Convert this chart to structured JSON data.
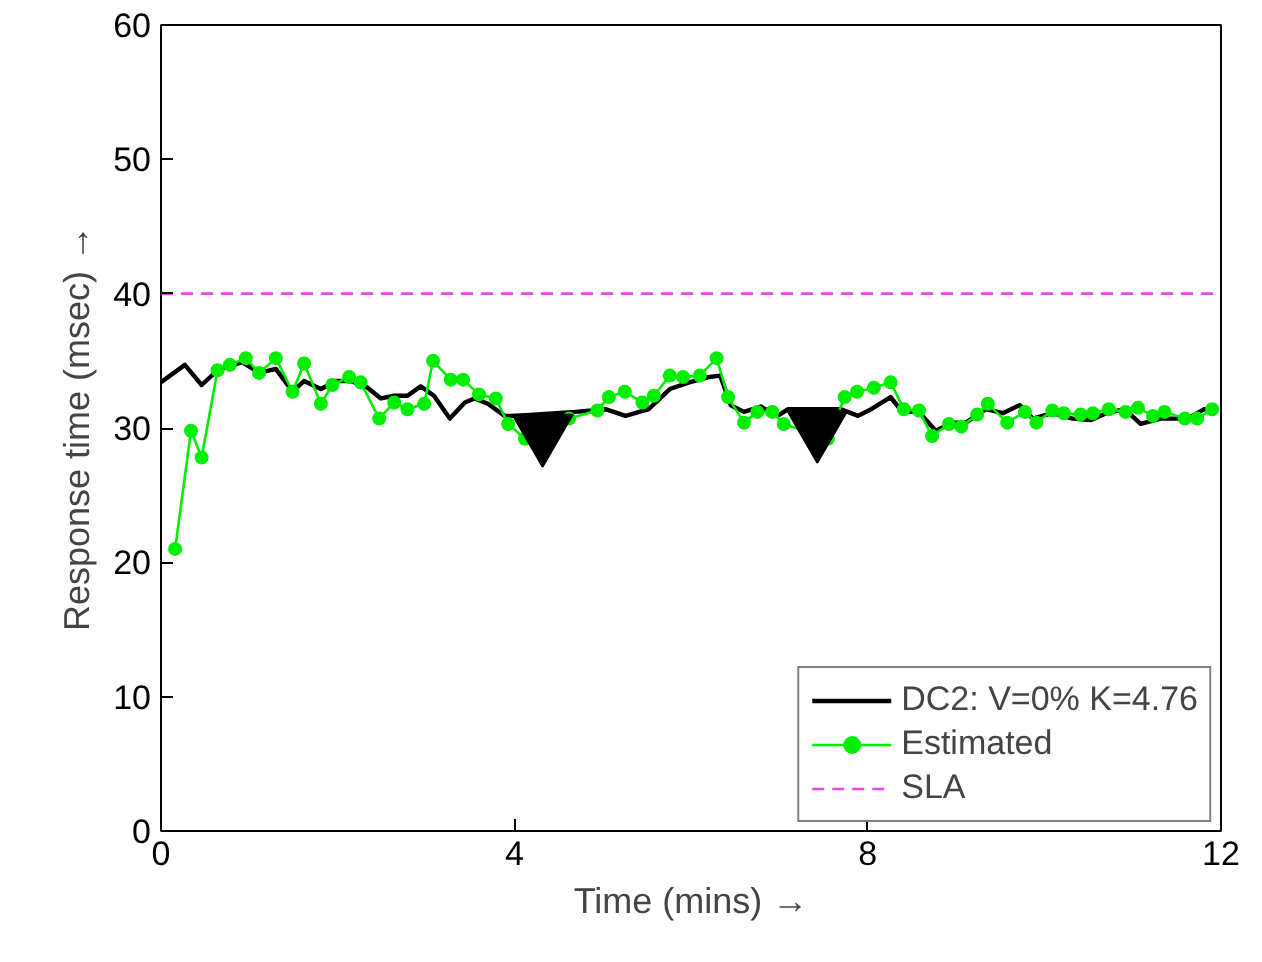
{
  "chart_data": {
    "type": "line",
    "xlabel": "Time (mins) →",
    "ylabel": "Response time (msec) →",
    "xlim": [
      0,
      12
    ],
    "ylim": [
      0,
      60
    ],
    "xticks": [
      0,
      4,
      8,
      12
    ],
    "yticks": [
      0,
      10,
      20,
      30,
      40,
      50,
      60
    ],
    "grid": false,
    "legend": "bottom right",
    "series": [
      {
        "name": "DC2: V=0% K=4.76",
        "color": "#000000",
        "marker": "none",
        "line_style": "solid",
        "x": [
          0,
          0.27,
          0.46,
          0.64,
          0.92,
          1.11,
          1.3,
          1.49,
          1.62,
          1.81,
          1.98,
          2.13,
          2.3,
          2.49,
          2.64,
          2.79,
          2.94,
          3.09,
          3.27,
          3.44,
          3.55,
          3.7,
          3.89,
          4.0,
          4.69,
          5.03,
          5.26,
          5.52,
          5.76,
          5.98,
          6.21,
          6.33,
          6.45,
          6.6,
          6.79,
          6.98,
          7.1,
          7.7,
          7.89,
          8.04,
          8.26,
          8.39,
          8.58,
          8.77,
          8.96,
          9.11,
          9.34,
          9.53,
          9.72,
          9.87,
          10.09,
          10.32,
          10.53,
          10.7,
          10.91,
          11.09,
          11.32,
          11.51,
          11.6,
          11.81,
          11.9
        ],
        "values": [
          33.4,
          34.7,
          33.2,
          34.3,
          34.9,
          34.1,
          34.4,
          32.7,
          33.5,
          32.9,
          33.5,
          33.5,
          33.2,
          32.2,
          32.4,
          32.4,
          33.1,
          32.4,
          30.7,
          31.9,
          32.2,
          31.8,
          30.9,
          30.9,
          31.2,
          31.4,
          30.9,
          31.4,
          32.9,
          33.4,
          33.8,
          33.9,
          31.7,
          31.2,
          31.6,
          30.9,
          31.4,
          31.4,
          30.9,
          31.4,
          32.3,
          31.2,
          31.2,
          29.8,
          30.4,
          30.4,
          31.4,
          31.1,
          31.7,
          30.7,
          31.1,
          30.7,
          30.6,
          31.1,
          31.4,
          30.3,
          30.7,
          30.7,
          30.6,
          31.4,
          31.4
        ]
      },
      {
        "name": "Estimated",
        "color": "#00ee00",
        "marker": "circle",
        "line_style": "solid",
        "x": [
          0.16,
          0.34,
          0.46,
          0.64,
          0.78,
          0.96,
          1.11,
          1.3,
          1.49,
          1.62,
          1.81,
          1.94,
          2.13,
          2.26,
          2.47,
          2.64,
          2.79,
          2.98,
          3.08,
          3.28,
          3.42,
          3.6,
          3.79,
          3.93,
          4.12,
          4.62,
          4.94,
          5.07,
          5.25,
          5.45,
          5.58,
          5.76,
          5.91,
          6.1,
          6.29,
          6.42,
          6.6,
          6.75,
          6.92,
          7.05,
          7.55,
          7.74,
          7.88,
          8.07,
          8.26,
          8.41,
          8.58,
          8.73,
          8.92,
          9.06,
          9.24,
          9.36,
          9.58,
          9.78,
          9.91,
          10.09,
          10.22,
          10.41,
          10.55,
          10.73,
          10.92,
          11.06,
          11.23,
          11.36,
          11.59,
          11.73,
          11.9
        ],
        "values": [
          21.0,
          29.8,
          27.8,
          34.3,
          34.7,
          35.2,
          34.1,
          35.2,
          32.7,
          34.8,
          31.8,
          33.2,
          33.8,
          33.4,
          30.7,
          31.9,
          31.4,
          31.8,
          35.0,
          33.6,
          33.6,
          32.5,
          32.2,
          30.3,
          29.2,
          30.7,
          31.3,
          32.3,
          32.7,
          31.9,
          32.4,
          33.9,
          33.8,
          33.9,
          35.2,
          32.3,
          30.4,
          31.2,
          31.2,
          30.3,
          29.2,
          32.3,
          32.7,
          33.0,
          33.4,
          31.4,
          31.3,
          29.4,
          30.3,
          30.1,
          31.0,
          31.8,
          30.4,
          31.2,
          30.4,
          31.3,
          31.1,
          31.0,
          31.1,
          31.4,
          31.2,
          31.5,
          30.9,
          31.2,
          30.7,
          30.7,
          31.4
        ]
      },
      {
        "type": "scatter",
        "color": "#000000",
        "marker": "triangle",
        "x": [
          4.32,
          7.43
        ],
        "values": [
          29.7,
          30.0
        ]
      }
    ],
    "ref_lines": [
      {
        "axis": "y",
        "value": 40,
        "label": "SLA",
        "color": "#ee44ee",
        "line_style": "dashed"
      }
    ]
  }
}
